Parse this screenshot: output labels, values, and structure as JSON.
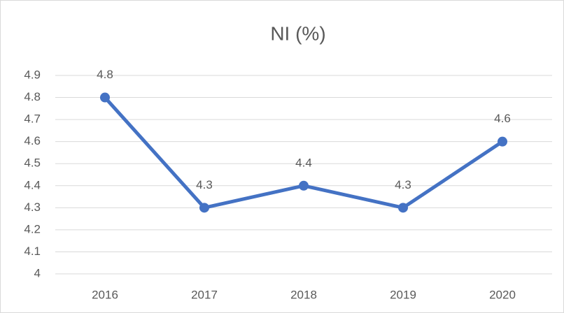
{
  "chart_data": {
    "type": "line",
    "title": "NI (%)",
    "categories": [
      "2016",
      "2017",
      "2018",
      "2019",
      "2020"
    ],
    "series": [
      {
        "color": "#4472c4",
        "values": [
          4.8,
          4.3,
          4.4,
          4.3,
          4.6
        ]
      }
    ],
    "ylim": [
      4,
      4.9
    ],
    "yticks": [
      4,
      4.1,
      4.2,
      4.3,
      4.4,
      4.5,
      4.6,
      4.7,
      4.8,
      4.9
    ],
    "grid": true
  }
}
